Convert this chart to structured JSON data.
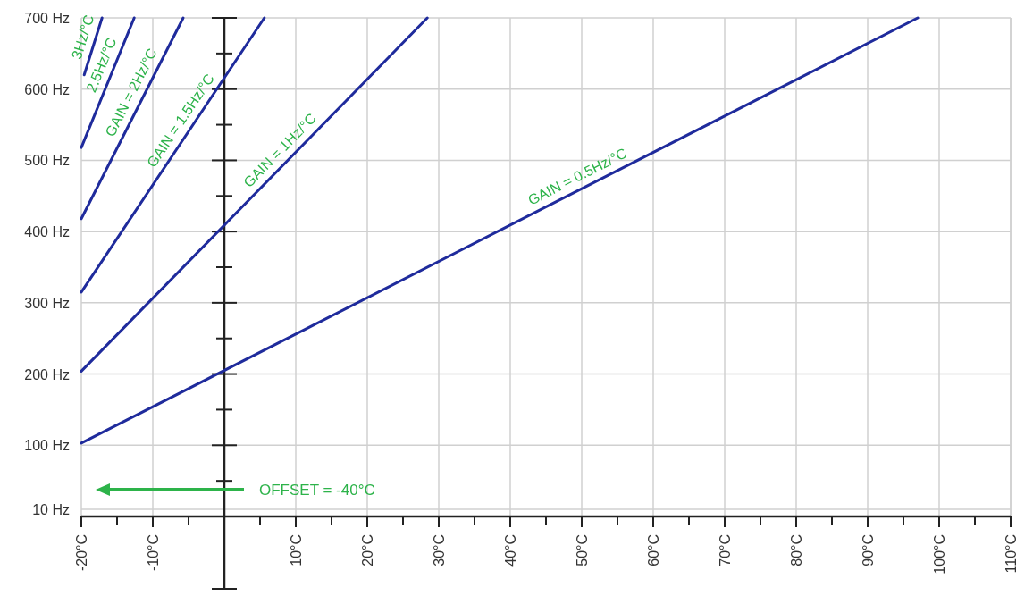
{
  "chart_data": {
    "type": "line",
    "series": [
      {
        "color": "#1f2b9c",
        "x": [
          -20,
          97
        ],
        "values": [
          103,
          700
        ]
      },
      {
        "color": "#1f2b9c",
        "x": [
          -20,
          28.4
        ],
        "values": [
          204,
          700
        ]
      },
      {
        "color": "#1f2b9c",
        "x": [
          -20,
          5.6
        ],
        "values": [
          315,
          700
        ]
      },
      {
        "color": "#1f2b9c",
        "x": [
          -20,
          -5.75
        ],
        "values": [
          418,
          700
        ]
      },
      {
        "color": "#1f2b9c",
        "x": [
          -20,
          -12.6
        ],
        "values": [
          518,
          700
        ]
      },
      {
        "color": "#1f2b9c",
        "x": [
          -19.6,
          -17.1
        ],
        "values": [
          620,
          700
        ]
      }
    ],
    "xlim": [
      -20,
      110
    ],
    "xticks": [
      {
        "value": -20,
        "label": "-20°C"
      },
      {
        "value": -15,
        "label": null
      },
      {
        "value": -10,
        "label": "-10°C"
      },
      {
        "value": -5,
        "label": null
      },
      {
        "value": 0,
        "label": null
      },
      {
        "value": 5,
        "label": null
      },
      {
        "value": 10,
        "label": "10°C"
      },
      {
        "value": 15,
        "label": null
      },
      {
        "value": 20,
        "label": "20°C"
      },
      {
        "value": 25,
        "label": null
      },
      {
        "value": 30,
        "label": "30°C"
      },
      {
        "value": 35,
        "label": null
      },
      {
        "value": 40,
        "label": "40°C"
      },
      {
        "value": 45,
        "label": null
      },
      {
        "value": 50,
        "label": "50°C"
      },
      {
        "value": 55,
        "label": null
      },
      {
        "value": 60,
        "label": "60°C"
      },
      {
        "value": 65,
        "label": null
      },
      {
        "value": 70,
        "label": "70°C"
      },
      {
        "value": 75,
        "label": null
      },
      {
        "value": 80,
        "label": "80°C"
      },
      {
        "value": 85,
        "label": null
      },
      {
        "value": 90,
        "label": "90°C"
      },
      {
        "value": 95,
        "label": null
      },
      {
        "value": 100,
        "label": "100°C"
      },
      {
        "value": 105,
        "label": null
      },
      {
        "value": 110,
        "label": "110°C"
      }
    ],
    "ylim": [
      0,
      700
    ],
    "yticks": [
      {
        "value": 10,
        "label": "10 Hz"
      },
      {
        "value": 100,
        "label": "100 Hz"
      },
      {
        "value": 200,
        "label": "200 Hz"
      },
      {
        "value": 300,
        "label": "300 Hz"
      },
      {
        "value": 400,
        "label": "400 Hz"
      },
      {
        "value": 500,
        "label": "500 Hz"
      },
      {
        "value": 600,
        "label": "600 Hz"
      },
      {
        "value": 700,
        "label": "700 Hz"
      }
    ],
    "grid": true,
    "marker": "none",
    "line_style": "solid",
    "ref_lines": [
      {
        "axis": "x",
        "value": 0,
        "color": "#222222"
      }
    ],
    "annotations": [
      "GAIN = 0.5Hz/°C",
      "GAIN = 1Hz/°C",
      "GAIN = 1.5Hz/°C",
      "GAIN = 2Hz/°C",
      "2.5Hz/°C",
      "3Hz/°C",
      "OFFSET =  -40°C"
    ]
  }
}
